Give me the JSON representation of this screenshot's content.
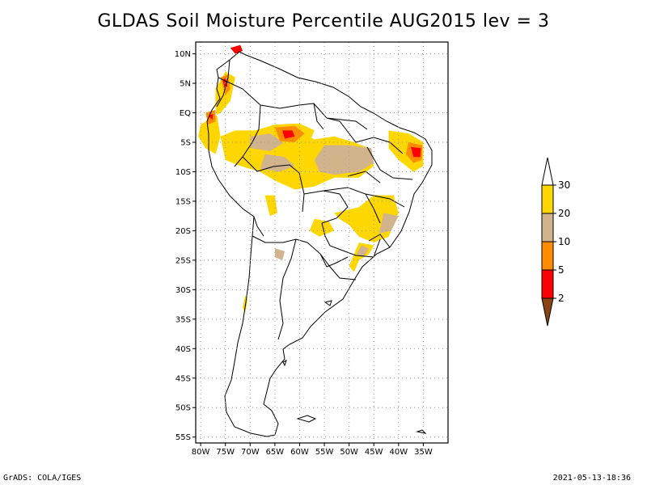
{
  "title": "GLDAS Soil Moisture Percentile AUG2015 lev = 3",
  "footer": {
    "left": "GrADS: COLA/IGES",
    "right": "2021-05-13-18:36"
  },
  "map": {
    "lon_range": [
      -81,
      -30
    ],
    "lat_range": [
      -56,
      12
    ],
    "lat_ticks": [
      {
        "v": 10,
        "label": "10N"
      },
      {
        "v": 5,
        "label": "5N"
      },
      {
        "v": 0,
        "label": "EQ"
      },
      {
        "v": -5,
        "label": "5S"
      },
      {
        "v": -10,
        "label": "10S"
      },
      {
        "v": -15,
        "label": "15S"
      },
      {
        "v": -20,
        "label": "20S"
      },
      {
        "v": -25,
        "label": "25S"
      },
      {
        "v": -30,
        "label": "30S"
      },
      {
        "v": -35,
        "label": "35S"
      },
      {
        "v": -40,
        "label": "40S"
      },
      {
        "v": -45,
        "label": "45S"
      },
      {
        "v": -50,
        "label": "50S"
      },
      {
        "v": -55,
        "label": "55S"
      }
    ],
    "lon_ticks": [
      {
        "v": -80,
        "label": "80W"
      },
      {
        "v": -75,
        "label": "75W"
      },
      {
        "v": -70,
        "label": "70W"
      },
      {
        "v": -65,
        "label": "65W"
      },
      {
        "v": -60,
        "label": "60W"
      },
      {
        "v": -55,
        "label": "55W"
      },
      {
        "v": -50,
        "label": "50W"
      },
      {
        "v": -45,
        "label": "45W"
      },
      {
        "v": -40,
        "label": "40W"
      },
      {
        "v": -35,
        "label": "35W"
      }
    ],
    "grid": true
  },
  "colorbar": {
    "colors": [
      "#8b4513",
      "#ff0000",
      "#ff8c00",
      "#d2b48c",
      "#ffd700",
      "#ffffff"
    ],
    "labels": [
      "2",
      "5",
      "10",
      "20",
      "30"
    ]
  },
  "chart_data": {
    "type": "heatmap",
    "title": "GLDAS Soil Moisture Percentile AUG2015 lev = 3",
    "levels": [
      2,
      5,
      10,
      20,
      30
    ],
    "regions": [
      {
        "cls": 30,
        "pts": [
          [
            -61,
            -3
          ],
          [
            -57,
            -4.5
          ],
          [
            -53,
            -4
          ],
          [
            -49,
            -5
          ],
          [
            -46,
            -6
          ],
          [
            -45,
            -9
          ],
          [
            -48,
            -11
          ],
          [
            -53,
            -11
          ],
          [
            -57,
            -12.5
          ],
          [
            -61,
            -13
          ],
          [
            -65,
            -11.5
          ],
          [
            -68,
            -10
          ],
          [
            -72,
            -9
          ],
          [
            -75,
            -8
          ],
          [
            -76,
            -4
          ],
          [
            -73,
            -3
          ],
          [
            -69,
            -3
          ],
          [
            -65,
            -2
          ]
        ]
      },
      {
        "cls": 20,
        "pts": [
          [
            -55,
            -5.5
          ],
          [
            -50,
            -5.5
          ],
          [
            -45.5,
            -6
          ],
          [
            -45,
            -8.5
          ],
          [
            -48,
            -10
          ],
          [
            -53,
            -10.5
          ],
          [
            -56,
            -10
          ],
          [
            -57,
            -8
          ]
        ]
      },
      {
        "cls": 20,
        "pts": [
          [
            -67,
            -7
          ],
          [
            -63,
            -7.5
          ],
          [
            -61,
            -9
          ],
          [
            -64,
            -10
          ],
          [
            -68,
            -9.5
          ]
        ]
      },
      {
        "cls": 20,
        "pts": [
          [
            -70,
            -4
          ],
          [
            -66,
            -3.5
          ],
          [
            -63,
            -5
          ],
          [
            -66,
            -6.5
          ],
          [
            -70,
            -6
          ]
        ]
      },
      {
        "cls": 30,
        "pts": [
          [
            -65,
            -2
          ],
          [
            -60,
            -1.8
          ],
          [
            -57,
            -3
          ],
          [
            -58,
            -5
          ],
          [
            -62,
            -6
          ],
          [
            -65,
            -4
          ]
        ]
      },
      {
        "cls": 10,
        "pts": [
          [
            -65,
            -2.5
          ],
          [
            -61,
            -2.2
          ],
          [
            -59,
            -3.5
          ],
          [
            -61,
            -5
          ],
          [
            -64,
            -4.8
          ]
        ]
      },
      {
        "cls": 5,
        "pts": [
          [
            -63.5,
            -3
          ],
          [
            -61.5,
            -3
          ],
          [
            -61,
            -4
          ],
          [
            -63,
            -4.4
          ]
        ]
      },
      {
        "cls": 30,
        "pts": [
          [
            -77,
            4
          ],
          [
            -75,
            7
          ],
          [
            -73,
            6
          ],
          [
            -74,
            2
          ],
          [
            -76,
            0
          ],
          [
            -80,
            -2
          ],
          [
            -80.5,
            -4
          ],
          [
            -79,
            -6
          ],
          [
            -77,
            -7
          ],
          [
            -76,
            -4
          ],
          [
            -77,
            1
          ]
        ]
      },
      {
        "cls": 10,
        "pts": [
          [
            -76,
            6
          ],
          [
            -74.5,
            6.5
          ],
          [
            -74,
            4
          ],
          [
            -75,
            3
          ]
        ]
      },
      {
        "cls": 5,
        "pts": [
          [
            -75.5,
            5.5
          ],
          [
            -75,
            6
          ],
          [
            -74.6,
            4.5
          ],
          [
            -75.2,
            4.2
          ]
        ]
      },
      {
        "cls": 10,
        "pts": [
          [
            -79,
            0
          ],
          [
            -77,
            0.5
          ],
          [
            -77,
            -1.5
          ],
          [
            -78.5,
            -2
          ]
        ]
      },
      {
        "cls": 5,
        "pts": [
          [
            -78.5,
            -0.5
          ],
          [
            -77.5,
            -0.2
          ],
          [
            -77.6,
            -1.2
          ]
        ]
      },
      {
        "cls": 5,
        "pts": [
          [
            -74,
            11
          ],
          [
            -72,
            11.5
          ],
          [
            -71.5,
            10.5
          ],
          [
            -73,
            10
          ]
        ]
      },
      {
        "cls": 30,
        "pts": [
          [
            -42,
            -3
          ],
          [
            -38,
            -3.5
          ],
          [
            -35,
            -5
          ],
          [
            -35,
            -9
          ],
          [
            -37,
            -10
          ],
          [
            -40,
            -8
          ],
          [
            -42,
            -6
          ]
        ]
      },
      {
        "cls": 10,
        "pts": [
          [
            -38,
            -5
          ],
          [
            -35.2,
            -5.5
          ],
          [
            -35.3,
            -8
          ],
          [
            -37,
            -8.5
          ],
          [
            -38.5,
            -7
          ]
        ]
      },
      {
        "cls": 5,
        "pts": [
          [
            -37.5,
            -5.8
          ],
          [
            -35.5,
            -6
          ],
          [
            -35.6,
            -7.5
          ],
          [
            -37,
            -7.5
          ]
        ]
      },
      {
        "cls": 30,
        "pts": [
          [
            -45,
            -14
          ],
          [
            -41,
            -14
          ],
          [
            -40,
            -17
          ],
          [
            -42,
            -21
          ],
          [
            -45,
            -22
          ],
          [
            -48,
            -21
          ],
          [
            -50,
            -19
          ],
          [
            -52,
            -18
          ],
          [
            -53,
            -17
          ],
          [
            -48,
            -16
          ]
        ]
      },
      {
        "cls": 20,
        "pts": [
          [
            -43,
            -17
          ],
          [
            -40,
            -17.5
          ],
          [
            -41.5,
            -20
          ],
          [
            -44,
            -20.5
          ]
        ]
      },
      {
        "cls": 30,
        "pts": [
          [
            -48,
            -22
          ],
          [
            -45,
            -22.5
          ],
          [
            -46,
            -24
          ],
          [
            -48,
            -25
          ],
          [
            -49,
            -27
          ],
          [
            -48,
            -28
          ],
          [
            -50,
            -26
          ]
        ]
      },
      {
        "cls": 20,
        "pts": [
          [
            -47.5,
            -22.5
          ],
          [
            -46,
            -23
          ],
          [
            -47,
            -24.5
          ],
          [
            -48.5,
            -24
          ]
        ]
      },
      {
        "cls": 30,
        "pts": [
          [
            -57,
            -18
          ],
          [
            -54,
            -18.5
          ],
          [
            -53,
            -20
          ],
          [
            -56,
            -21
          ],
          [
            -58,
            -20
          ]
        ]
      },
      {
        "cls": 20,
        "pts": [
          [
            -65,
            -23
          ],
          [
            -63,
            -23.5
          ],
          [
            -63.5,
            -25
          ],
          [
            -65,
            -24.5
          ]
        ]
      },
      {
        "cls": 30,
        "pts": [
          [
            -67,
            -14
          ],
          [
            -65,
            -14
          ],
          [
            -64.5,
            -17
          ],
          [
            -66,
            -17.5
          ]
        ]
      },
      {
        "cls": 30,
        "pts": [
          [
            -71,
            -31
          ],
          [
            -70.5,
            -31.5
          ],
          [
            -71,
            -34
          ],
          [
            -71.5,
            -33
          ]
        ]
      }
    ]
  }
}
